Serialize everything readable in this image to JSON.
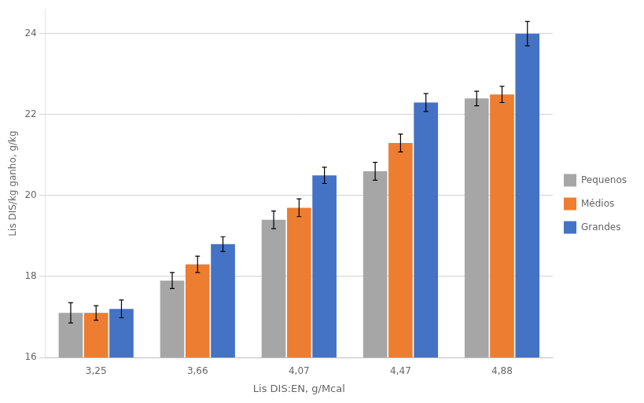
{
  "chart_data": {
    "type": "bar",
    "xlabel": "Lis DIS:EN, g/Mcal",
    "ylabel": "Lis DIS/kg ganho, g/kg",
    "categories": [
      "3,25",
      "3,66",
      "4,07",
      "4,47",
      "4,88"
    ],
    "series": [
      {
        "name": "Pequenos",
        "color": "#a6a6a6",
        "values": [
          17.1,
          17.9,
          19.4,
          20.6,
          22.4
        ],
        "errors": [
          0.25,
          0.2,
          0.22,
          0.22,
          0.18
        ]
      },
      {
        "name": "Médios",
        "color": "#ed7d31",
        "values": [
          17.1,
          18.3,
          19.7,
          21.3,
          22.5
        ],
        "errors": [
          0.18,
          0.2,
          0.22,
          0.22,
          0.2
        ]
      },
      {
        "name": "Grandes",
        "color": "#4472c4",
        "values": [
          17.2,
          18.8,
          20.5,
          22.3,
          24.0
        ],
        "errors": [
          0.22,
          0.18,
          0.2,
          0.22,
          0.3
        ]
      }
    ],
    "ylim": [
      16,
      24.6
    ],
    "yticks": [
      16,
      18,
      20,
      22,
      24
    ],
    "grid": true,
    "legend": "right"
  }
}
